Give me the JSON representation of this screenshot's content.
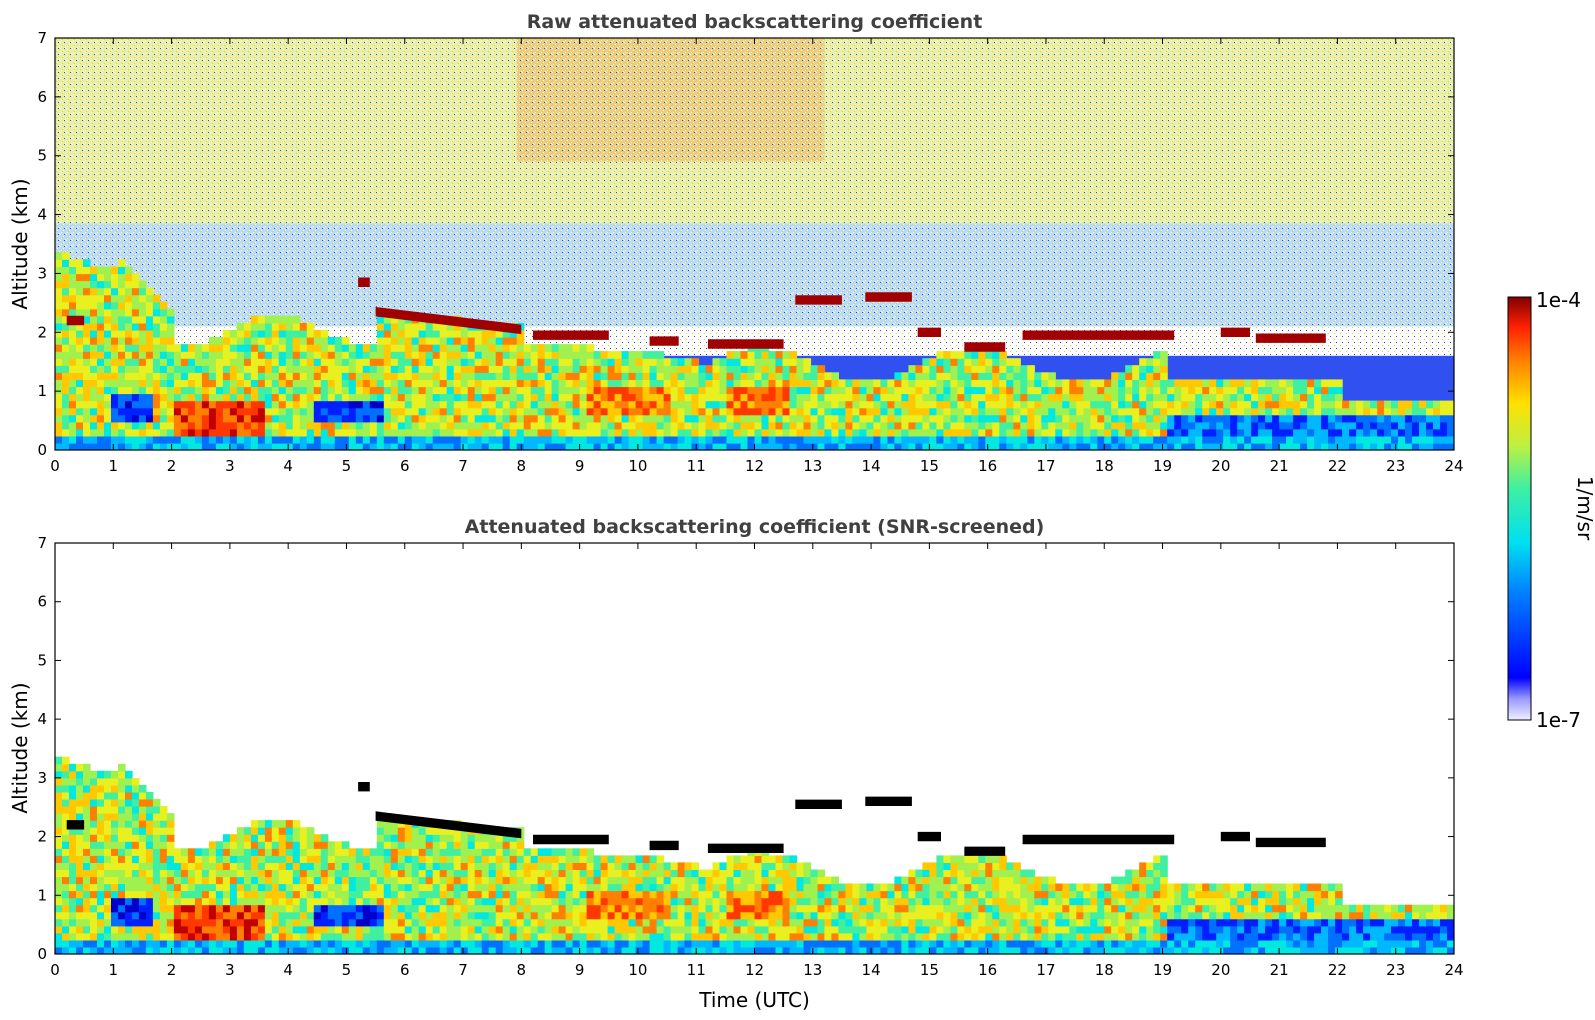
{
  "chart_data": [
    {
      "type": "heatmap",
      "title": "Raw attenuated backscattering coefficient",
      "xlabel": "",
      "ylabel": "Altitude (km)",
      "xlim": [
        0,
        24
      ],
      "ylim": [
        0,
        7
      ],
      "xticks": [
        "0",
        "1",
        "2",
        "3",
        "4",
        "5",
        "6",
        "7",
        "8",
        "9",
        "10",
        "11",
        "12",
        "13",
        "14",
        "15",
        "16",
        "17",
        "18",
        "19",
        "20",
        "21",
        "22",
        "23",
        "24"
      ],
      "yticks": [
        "0",
        "1",
        "2",
        "3",
        "4",
        "5",
        "6",
        "7"
      ],
      "screened": false,
      "cloud_layers": [
        {
          "x": [
            5.2,
            5.4
          ],
          "y": 2.85
        },
        {
          "x": [
            5.5,
            8.0
          ],
          "y": [
            2.35,
            2.05
          ]
        },
        {
          "x": [
            8.2,
            9.5
          ],
          "y": 1.95
        },
        {
          "x": [
            10.2,
            10.7
          ],
          "y": 1.85
        },
        {
          "x": [
            11.2,
            12.5
          ],
          "y": 1.8
        },
        {
          "x": [
            12.7,
            13.5
          ],
          "y": 2.55
        },
        {
          "x": [
            13.9,
            14.7
          ],
          "y": 2.6
        },
        {
          "x": [
            14.8,
            15.2
          ],
          "y": 2.0
        },
        {
          "x": [
            15.6,
            16.3
          ],
          "y": 1.75
        },
        {
          "x": [
            16.6,
            19.2
          ],
          "y": 1.95
        },
        {
          "x": [
            20.0,
            20.5
          ],
          "y": 2.0
        },
        {
          "x": [
            20.6,
            21.8
          ],
          "y": 1.9
        },
        {
          "x": [
            0.2,
            0.5
          ],
          "y": 2.2
        }
      ]
    },
    {
      "type": "heatmap",
      "title": "Attenuated backscattering coefficient (SNR-screened)",
      "xlabel": "Time (UTC)",
      "ylabel": "Altitude (km)",
      "xlim": [
        0,
        24
      ],
      "ylim": [
        0,
        7
      ],
      "xticks": [
        "0",
        "1",
        "2",
        "3",
        "4",
        "5",
        "6",
        "7",
        "8",
        "9",
        "10",
        "11",
        "12",
        "13",
        "14",
        "15",
        "16",
        "17",
        "18",
        "19",
        "20",
        "21",
        "22",
        "23",
        "24"
      ],
      "yticks": [
        "0",
        "1",
        "2",
        "3",
        "4",
        "5",
        "6",
        "7"
      ],
      "screened": true
    }
  ],
  "colorbar": {
    "max_label": "1e-4",
    "min_label": "1e-7",
    "unit_label": "1/m/sr",
    "scale": "log",
    "colormap": "jet"
  },
  "colors": {
    "title": "#404040",
    "saturated": "#000000"
  }
}
